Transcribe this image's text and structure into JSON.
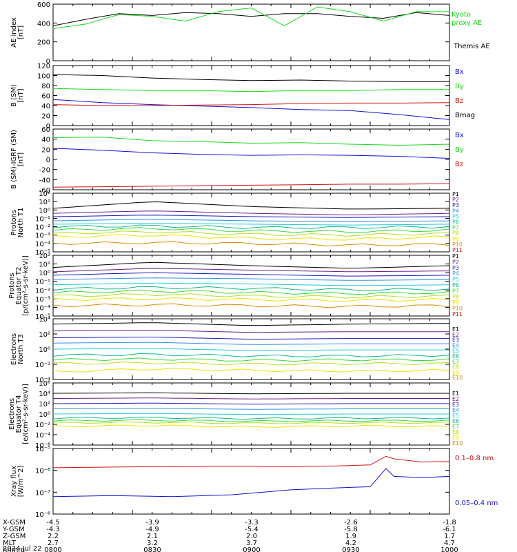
{
  "colors": {
    "black": "#000000",
    "green": "#18d818",
    "red": "#d01010",
    "blue": "#1010d0",
    "p_colors": [
      "#000000",
      "#6a1e8c",
      "#1a1ab8",
      "#2f8fe0",
      "#22c8d8",
      "#10b88a",
      "#3ad83a",
      "#b0e020",
      "#f0e000",
      "#e08a00",
      "#d01010"
    ]
  },
  "time_ticks": [
    "0800",
    "0830",
    "0900",
    "0930",
    "1000"
  ],
  "panels": [
    {
      "id": "ae",
      "ylabel": [
        "AE index",
        "[nT]"
      ],
      "ylim": [
        0,
        600
      ],
      "ticks": [
        "600",
        "400",
        "200",
        "0"
      ],
      "labels": [
        {
          "text": "Kyoto",
          "color": "green"
        },
        {
          "text": "proxy AE",
          "color": "green"
        },
        {
          "text": "Themis AE",
          "color": "black"
        }
      ]
    },
    {
      "id": "bsm",
      "ylabel": [
        "B (SM)",
        "[nT]"
      ],
      "ylim": [
        0,
        120
      ],
      "ticks": [
        "120",
        "100",
        "80",
        "60",
        "40",
        "20",
        "0"
      ],
      "labels": [
        {
          "text": "Bx",
          "color": "blue"
        },
        {
          "text": "By",
          "color": "green"
        },
        {
          "text": "Bz",
          "color": "red"
        },
        {
          "text": "Bmag",
          "color": "black"
        }
      ]
    },
    {
      "id": "bigrf",
      "ylabel": [
        "B (SM)-IGRF (SM)",
        "[nT]"
      ],
      "ylim": [
        -60,
        60
      ],
      "ticks": [
        "60",
        "40",
        "20",
        "0",
        "-20",
        "-40",
        "-60"
      ],
      "labels": [
        {
          "text": "Bx",
          "color": "blue"
        },
        {
          "text": "By",
          "color": "green"
        },
        {
          "text": "Bz",
          "color": "red"
        }
      ]
    },
    {
      "id": "pn",
      "ylabel": [
        "Protons",
        "North T1"
      ],
      "ticks": [
        "10²",
        "10¹",
        "10⁰",
        "10⁻¹",
        "10⁻²",
        "10⁻³",
        "10⁻⁴",
        "10⁻⁵"
      ],
      "labels": [
        "P1",
        "P2",
        "P3",
        "P4",
        "P5",
        "P6",
        "P7",
        "P8",
        "P9",
        "P10",
        "P11"
      ]
    },
    {
      "id": "pe",
      "ylabel": [
        "Protons",
        "Equator T2",
        "[p/(cm²-s-sr-keV)]"
      ],
      "ticks": [
        "10²",
        "10¹",
        "10⁰",
        "10⁻¹",
        "10⁻²",
        "10⁻³",
        "10⁻⁴",
        "10⁻⁵"
      ],
      "labels": [
        "P1",
        "P2",
        "P3",
        "P4",
        "P5",
        "P6",
        "P7",
        "P8",
        "P9",
        "P10",
        "P11"
      ]
    },
    {
      "id": "en",
      "ylabel": [
        "Electrons",
        "North T3"
      ],
      "ticks": [
        "10⁴",
        "10²",
        "10⁰",
        "10⁻²",
        "10⁻⁴"
      ],
      "labels": [
        "E1",
        "E2",
        "E3",
        "E4",
        "E5",
        "E6",
        "E7",
        "E8",
        "E9",
        "E10"
      ]
    },
    {
      "id": "ee",
      "ylabel": [
        "Electrons",
        "Equator T4",
        "[e/(cm²-s-sr-keV)]"
      ],
      "ticks": [
        "10⁶",
        "10⁴",
        "10²",
        "10⁰",
        "10⁻²",
        "10⁻⁴",
        "10⁻⁶"
      ],
      "labels": [
        "E1",
        "E2",
        "E3",
        "E4",
        "E5",
        "E6",
        "E7",
        "E8",
        "E9",
        "E10"
      ]
    },
    {
      "id": "xray",
      "ylabel": [
        "Xray flux",
        "[W/m^2]"
      ],
      "ticks": [
        "10⁻⁵",
        "10⁻⁶",
        "10⁻⁷",
        "10⁻⁸"
      ],
      "labels": [
        {
          "text": "0.1–0.8 nm",
          "color": "red"
        },
        {
          "text": "0.05–0.4 nm",
          "color": "blue"
        }
      ]
    }
  ],
  "footer": {
    "row_labels": [
      "X-GSM",
      "Y-GSM",
      "Z-GSM",
      "MLT",
      "hhmm"
    ],
    "columns": [
      [
        "-4.5",
        "-4.3",
        "2.2",
        "2.7",
        "0800"
      ],
      [
        "-3.9",
        "-4.9",
        "2.1",
        "3.2",
        "0830"
      ],
      [
        "-3.3",
        "-5.4",
        "2.0",
        "3.7",
        "0900"
      ],
      [
        "-2.6",
        "-5.8",
        "1.9",
        "4.2",
        "0930"
      ],
      [
        "-1.8",
        "-6.1",
        "1.7",
        "4.7",
        "1000"
      ]
    ],
    "date": "2024 Jul 22"
  },
  "chart_data": [
    {
      "type": "line",
      "title": "",
      "ylabel": "AE index [nT]",
      "x": [
        "0800",
        "0810",
        "0820",
        "0830",
        "0840",
        "0850",
        "0900",
        "0910",
        "0920",
        "0930",
        "0940",
        "0950",
        "1000"
      ],
      "series": [
        {
          "name": "Themis AE",
          "values": [
            370,
            440,
            500,
            480,
            510,
            500,
            470,
            500,
            500,
            470,
            450,
            510,
            480
          ]
        },
        {
          "name": "Kyoto proxy AE",
          "values": [
            340,
            390,
            490,
            470,
            420,
            520,
            560,
            370,
            570,
            520,
            420,
            520,
            520
          ]
        }
      ]
    },
    {
      "type": "line",
      "title": "",
      "ylabel": "B (SM) [nT]",
      "x": [
        "0800",
        "0815",
        "0830",
        "0845",
        "0900",
        "0915",
        "0930",
        "0945",
        "1000"
      ],
      "series": [
        {
          "name": "Bmag",
          "values": [
            102,
            100,
            95,
            92,
            90,
            91,
            89,
            88,
            88
          ]
        },
        {
          "name": "By",
          "values": [
            74,
            72,
            70,
            70,
            68,
            70,
            70,
            72,
            72
          ]
        },
        {
          "name": "Bx",
          "values": [
            52,
            46,
            42,
            39,
            36,
            32,
            30,
            22,
            12
          ]
        },
        {
          "name": "Bz",
          "values": [
            42,
            40,
            40,
            41,
            42,
            44,
            45,
            45,
            46
          ]
        }
      ]
    },
    {
      "type": "line",
      "title": "",
      "ylabel": "B (SM)-IGRF (SM) [nT]",
      "x": [
        "0800",
        "0815",
        "0830",
        "0845",
        "0900",
        "0915",
        "0930",
        "0945",
        "1000"
      ],
      "series": [
        {
          "name": "By",
          "values": [
            43,
            44,
            37,
            35,
            32,
            33,
            30,
            28,
            30
          ]
        },
        {
          "name": "Bx",
          "values": [
            22,
            18,
            13,
            10,
            8,
            9,
            8,
            6,
            2
          ]
        },
        {
          "name": "Bz",
          "values": [
            -55,
            -54,
            -53,
            -52,
            -51,
            -50,
            -49,
            -49,
            -48
          ]
        }
      ]
    },
    {
      "type": "line",
      "title": "",
      "ylabel": "Protons North T1 (log10 flux)",
      "x": [
        "0800",
        "0830",
        "0900",
        "0930",
        "1000"
      ],
      "series": [
        {
          "name": "P1",
          "values": [
            0.2,
            1.0,
            0.4,
            0.1,
            0.2
          ]
        },
        {
          "name": "P2",
          "values": [
            -0.4,
            -0.1,
            -0.4,
            -0.6,
            -0.4
          ]
        },
        {
          "name": "P3",
          "values": [
            -0.8,
            -0.6,
            -0.8,
            -0.9,
            -0.8
          ]
        },
        {
          "name": "P4",
          "values": [
            -1.3,
            -1.1,
            -1.3,
            -1.4,
            -1.3
          ]
        },
        {
          "name": "P5",
          "values": [
            -1.7,
            -1.6,
            -1.7,
            -1.8,
            -1.7
          ]
        },
        {
          "name": "P6",
          "values": [
            -2.0,
            -1.9,
            -2.1,
            -2.1,
            -2.0
          ]
        },
        {
          "name": "P7",
          "values": [
            -2.4,
            -2.2,
            -2.5,
            -2.6,
            -2.4
          ]
        },
        {
          "name": "P8",
          "values": [
            -2.8,
            -2.6,
            -2.9,
            -3.0,
            -2.8
          ]
        },
        {
          "name": "P9",
          "values": [
            -3.2,
            -3.0,
            -3.4,
            -3.5,
            -3.2
          ]
        },
        {
          "name": "P10",
          "values": [
            -4.0,
            -3.9,
            -4.0,
            -4.2,
            -4.1
          ]
        }
      ]
    },
    {
      "type": "line",
      "title": "",
      "ylabel": "Protons Equator T2 [p/(cm^2-s-sr-keV)]",
      "x": [
        "0800",
        "0830",
        "0900",
        "0930",
        "1000"
      ],
      "series": [
        {
          "name": "P1",
          "values": [
            0.6,
            1.2,
            0.8,
            0.5,
            0.8
          ]
        },
        {
          "name": "P2",
          "values": [
            0.1,
            0.5,
            0.3,
            0.1,
            0.2
          ]
        },
        {
          "name": "P3",
          "values": [
            -0.3,
            0.0,
            -0.2,
            -0.4,
            -0.3
          ]
        },
        {
          "name": "P4",
          "values": [
            -0.8,
            -0.6,
            -0.7,
            -0.9,
            -0.8
          ]
        },
        {
          "name": "P5",
          "values": [
            -1.4,
            -1.2,
            -1.3,
            -1.5,
            -1.4
          ]
        },
        {
          "name": "P6",
          "values": [
            -1.9,
            -1.7,
            -1.8,
            -2.0,
            -1.9
          ]
        },
        {
          "name": "P7",
          "values": [
            -2.3,
            -2.1,
            -2.3,
            -2.4,
            -2.3
          ]
        },
        {
          "name": "P8",
          "values": [
            -2.7,
            -2.5,
            -2.7,
            -2.8,
            -2.7
          ]
        },
        {
          "name": "P9",
          "values": [
            -3.1,
            -3.0,
            -3.1,
            -3.2,
            -3.1
          ]
        },
        {
          "name": "P10",
          "values": [
            -3.8,
            -3.7,
            -3.8,
            -3.9,
            -3.8
          ]
        }
      ]
    },
    {
      "type": "line",
      "title": "",
      "ylabel": "Electrons North T3 (log10 flux)",
      "x": [
        "0800",
        "0830",
        "0900",
        "0930",
        "1000"
      ],
      "series": [
        {
          "name": "E1",
          "values": [
            3.3,
            3.5,
            3.1,
            3.3,
            3.4
          ]
        },
        {
          "name": "E2",
          "values": [
            2.4,
            2.5,
            2.2,
            2.3,
            2.3
          ]
        },
        {
          "name": "E3",
          "values": [
            1.5,
            1.6,
            1.3,
            1.4,
            1.4
          ]
        },
        {
          "name": "E4",
          "values": [
            0.8,
            0.9,
            0.6,
            0.7,
            0.7
          ]
        },
        {
          "name": "E5",
          "values": [
            0.0,
            0.1,
            -0.2,
            -0.1,
            -0.1
          ]
        },
        {
          "name": "E6",
          "values": [
            -0.8,
            -0.7,
            -0.9,
            -0.9,
            -0.8
          ]
        },
        {
          "name": "E7",
          "values": [
            -1.4,
            -1.3,
            -1.5,
            -1.4,
            -1.4
          ]
        },
        {
          "name": "E8",
          "values": [
            -1.9,
            -1.8,
            -2.0,
            -1.9,
            -1.9
          ]
        },
        {
          "name": "E9",
          "values": [
            -3.0,
            -2.6,
            -2.8,
            -2.9,
            -2.8
          ]
        }
      ]
    },
    {
      "type": "line",
      "title": "",
      "ylabel": "Electrons Equator T4 [e/(cm^2-s-sr-keV)]",
      "x": [
        "0800",
        "0830",
        "0900",
        "0930",
        "1000"
      ],
      "series": [
        {
          "name": "E1",
          "values": [
            4.0,
            4.1,
            3.9,
            4.0,
            4.0
          ]
        },
        {
          "name": "E2",
          "values": [
            3.0,
            3.1,
            2.9,
            3.0,
            3.0
          ]
        },
        {
          "name": "E3",
          "values": [
            2.0,
            2.1,
            1.9,
            2.0,
            2.0
          ]
        },
        {
          "name": "E4",
          "values": [
            1.0,
            1.1,
            0.9,
            1.0,
            1.0
          ]
        },
        {
          "name": "E5",
          "values": [
            0.0,
            0.1,
            -0.1,
            0.0,
            0.0
          ]
        },
        {
          "name": "E6",
          "values": [
            -0.8,
            -0.7,
            -0.9,
            -0.8,
            -0.8
          ]
        },
        {
          "name": "E7",
          "values": [
            -1.3,
            -1.2,
            -1.4,
            -1.3,
            -1.3
          ]
        },
        {
          "name": "E8",
          "values": [
            -1.7,
            -1.6,
            -1.8,
            -1.7,
            -1.7
          ]
        },
        {
          "name": "E9",
          "values": [
            -2.4,
            -2.2,
            -2.5,
            -2.3,
            -2.4
          ]
        }
      ]
    },
    {
      "type": "line",
      "title": "",
      "ylabel": "Xray flux [W/m^2]",
      "yscale": "log",
      "x": [
        "0800",
        "0815",
        "0830",
        "0845",
        "0900",
        "0915",
        "0925",
        "0930",
        "0935",
        "0945",
        "1000"
      ],
      "series": [
        {
          "name": "0.1–0.8 nm",
          "values": [
            2e-06,
            2.2e-06,
            2.4e-06,
            2.5e-06,
            2.4e-06,
            2.6e-06,
            3e-06,
            1e-05,
            7e-06,
            4.5e-06,
            4.8e-06
          ]
        },
        {
          "name": "0.05–0.4 nm",
          "values": [
            3.5e-08,
            4e-08,
            3.5e-08,
            4.5e-08,
            9e-08,
            1.2e-07,
            1.4e-07,
            1.8e-06,
            6e-07,
            5e-07,
            6e-07
          ]
        }
      ]
    }
  ]
}
